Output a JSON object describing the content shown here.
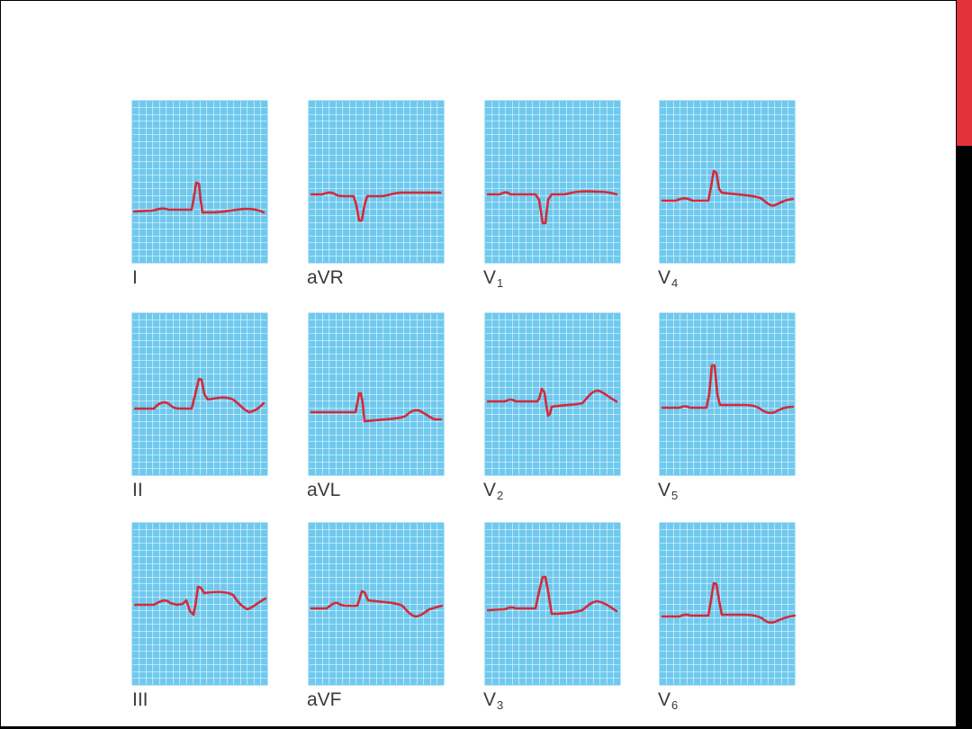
{
  "colors": {
    "grid_background": "#6fc9ee",
    "grid_lines": "#ffffff",
    "trace": "#d42a3a",
    "accent_bar": "#e2323a",
    "label": "#3a3a3a"
  },
  "leads": [
    {
      "name": "I",
      "sub": ""
    },
    {
      "name": "aVR",
      "sub": ""
    },
    {
      "name": "V",
      "sub": "1"
    },
    {
      "name": "V",
      "sub": "4"
    },
    {
      "name": "II",
      "sub": ""
    },
    {
      "name": "aVL",
      "sub": ""
    },
    {
      "name": "V",
      "sub": "2"
    },
    {
      "name": "V",
      "sub": "5"
    },
    {
      "name": "III",
      "sub": ""
    },
    {
      "name": "aVF",
      "sub": ""
    },
    {
      "name": "V",
      "sub": "3"
    },
    {
      "name": "V",
      "sub": "6"
    }
  ]
}
